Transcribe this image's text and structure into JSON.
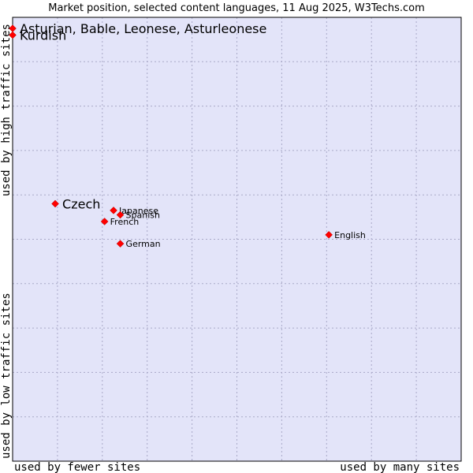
{
  "chart_data": {
    "type": "scatter",
    "title": "Market position, selected content languages, 11 Aug 2025, W3Techs.com",
    "xlabel_left": "used by fewer sites",
    "xlabel_right": "used by many sites",
    "ylabel_top": "used by high traffic sites",
    "ylabel_bottom": "used by low traffic sites",
    "xlim": [
      0,
      100
    ],
    "ylim": [
      0,
      100
    ],
    "grid": true,
    "colors": {
      "background": "#e3e4f9",
      "marker": "#ff0000",
      "frame": "#000000"
    },
    "points": [
      {
        "label": "Asturian, Bable, Leonese, Asturleonese",
        "x": 0,
        "y": 97.5,
        "emphasis": true
      },
      {
        "label": "Kurdish",
        "x": 0,
        "y": 96,
        "emphasis": true
      },
      {
        "label": "Czech",
        "x": 9.5,
        "y": 58,
        "emphasis": true
      },
      {
        "label": "Japanese",
        "x": 22.5,
        "y": 56.5,
        "emphasis": false
      },
      {
        "label": "Spanish",
        "x": 24,
        "y": 55.5,
        "emphasis": false
      },
      {
        "label": "French",
        "x": 20.5,
        "y": 54,
        "emphasis": false
      },
      {
        "label": "German",
        "x": 24,
        "y": 49,
        "emphasis": false
      },
      {
        "label": "English",
        "x": 70.5,
        "y": 51,
        "emphasis": false
      }
    ]
  }
}
